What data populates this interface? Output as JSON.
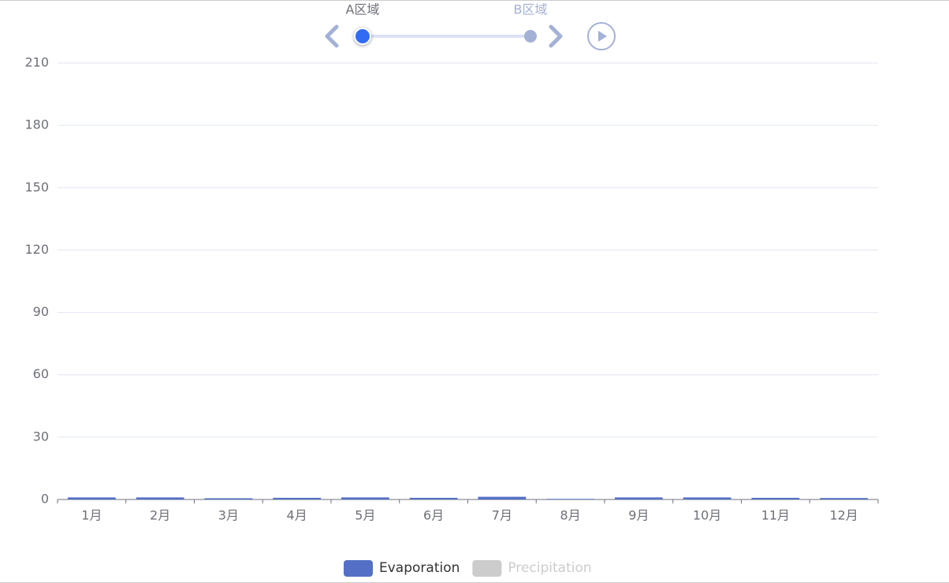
{
  "chart_data": {
    "type": "bar",
    "timeline": {
      "labels": [
        "A区域",
        "B区域"
      ],
      "current": 0
    },
    "categories": [
      "1月",
      "2月",
      "3月",
      "4月",
      "5月",
      "6月",
      "7月",
      "8月",
      "9月",
      "10月",
      "11月",
      "12月"
    ],
    "series": [
      {
        "name": "Evaporation",
        "color": "#5470c6",
        "values": [
          1,
          1,
          0.6,
          0.8,
          1,
          0.8,
          1.3,
          0.3,
          1,
          1,
          0.8,
          0.7
        ]
      },
      {
        "name": "Precipitation",
        "color": "#5470c6",
        "hidden": true,
        "values": [
          null,
          null,
          null,
          null,
          null,
          null,
          null,
          null,
          null,
          null,
          null,
          null
        ]
      }
    ],
    "ylim": [
      0,
      210
    ],
    "yticks": [
      0,
      30,
      60,
      90,
      120,
      150,
      180,
      210
    ],
    "grid": true
  }
}
